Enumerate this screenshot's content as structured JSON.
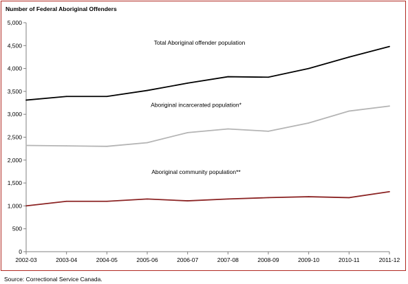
{
  "chart_data": {
    "type": "line",
    "title": "Number of Federal Aboriginal Offenders",
    "xlabel": "",
    "ylabel": "",
    "ylim": [
      0,
      5000
    ],
    "yticks": [
      0,
      500,
      1000,
      1500,
      2000,
      2500,
      3000,
      3500,
      4000,
      4500,
      5000
    ],
    "ytick_labels": [
      "0",
      "500",
      "1,000",
      "1,500",
      "2,000",
      "2,500",
      "3,000",
      "3,500",
      "4,000",
      "4,500",
      "5,000"
    ],
    "categories": [
      "2002-03",
      "2003-04",
      "2004-05",
      "2005-06",
      "2006-07",
      "2007-08",
      "2008-09",
      "2009-10",
      "2010-11",
      "2011-12"
    ],
    "grid": false,
    "legend": "none",
    "series": [
      {
        "name": "Total Aboriginal offender population",
        "color": "#000000",
        "values": [
          3310,
          3390,
          3390,
          3520,
          3680,
          3820,
          3810,
          4000,
          4250,
          4480
        ]
      },
      {
        "name": "Aboriginal incarcerated population*",
        "color": "#b4b4b4",
        "values": [
          2320,
          2310,
          2300,
          2380,
          2600,
          2680,
          2630,
          2810,
          3070,
          3180
        ]
      },
      {
        "name": "Aboriginal community population**",
        "color": "#8b2323",
        "values": [
          1000,
          1100,
          1100,
          1150,
          1110,
          1150,
          1180,
          1200,
          1180,
          1310
        ]
      }
    ]
  },
  "source": "Source:  Correctional Service Canada."
}
